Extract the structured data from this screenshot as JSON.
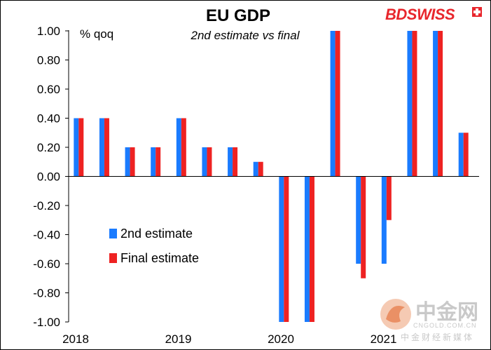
{
  "chart_data": {
    "type": "bar",
    "title": "EU GDP",
    "subtitle": "2nd estimate vs final",
    "ylabel": "% qoq",
    "ylim": [
      -1.0,
      1.0
    ],
    "yticks": [
      "1.00",
      "0.80",
      "0.60",
      "0.40",
      "0.20",
      "0.00",
      "-0.20",
      "-0.40",
      "-0.60",
      "-0.80",
      "-1.00"
    ],
    "yticks_values": [
      1.0,
      0.8,
      0.6,
      0.4,
      0.2,
      0.0,
      -0.2,
      -0.4,
      -0.6,
      -0.8,
      -1.0
    ],
    "x_labels": [
      "2018",
      "2019",
      "2020",
      "2021"
    ],
    "legend_position": "bottom-left",
    "grid": false,
    "series": [
      {
        "name": "2nd estimate",
        "color": "#1a7bff",
        "values": [
          0.4,
          0.4,
          0.2,
          0.2,
          0.4,
          0.2,
          0.2,
          0.1,
          -1.0,
          -1.0,
          1.0,
          -0.6,
          -0.6,
          1.0,
          1.0,
          0.3
        ]
      },
      {
        "name": "Final estimate",
        "color": "#ee2222",
        "values": [
          0.4,
          0.4,
          0.2,
          0.2,
          0.4,
          0.2,
          0.2,
          0.1,
          -1.0,
          -1.0,
          1.0,
          -0.7,
          -0.3,
          1.0,
          1.0,
          0.3
        ]
      }
    ]
  },
  "brand": {
    "name": "BDSWISS",
    "accent": "#e8262c"
  },
  "watermark": {
    "cn": "中金网",
    "en": "CNGOLD.COM.CN",
    "cn_sub": "中金财经新媒体"
  }
}
